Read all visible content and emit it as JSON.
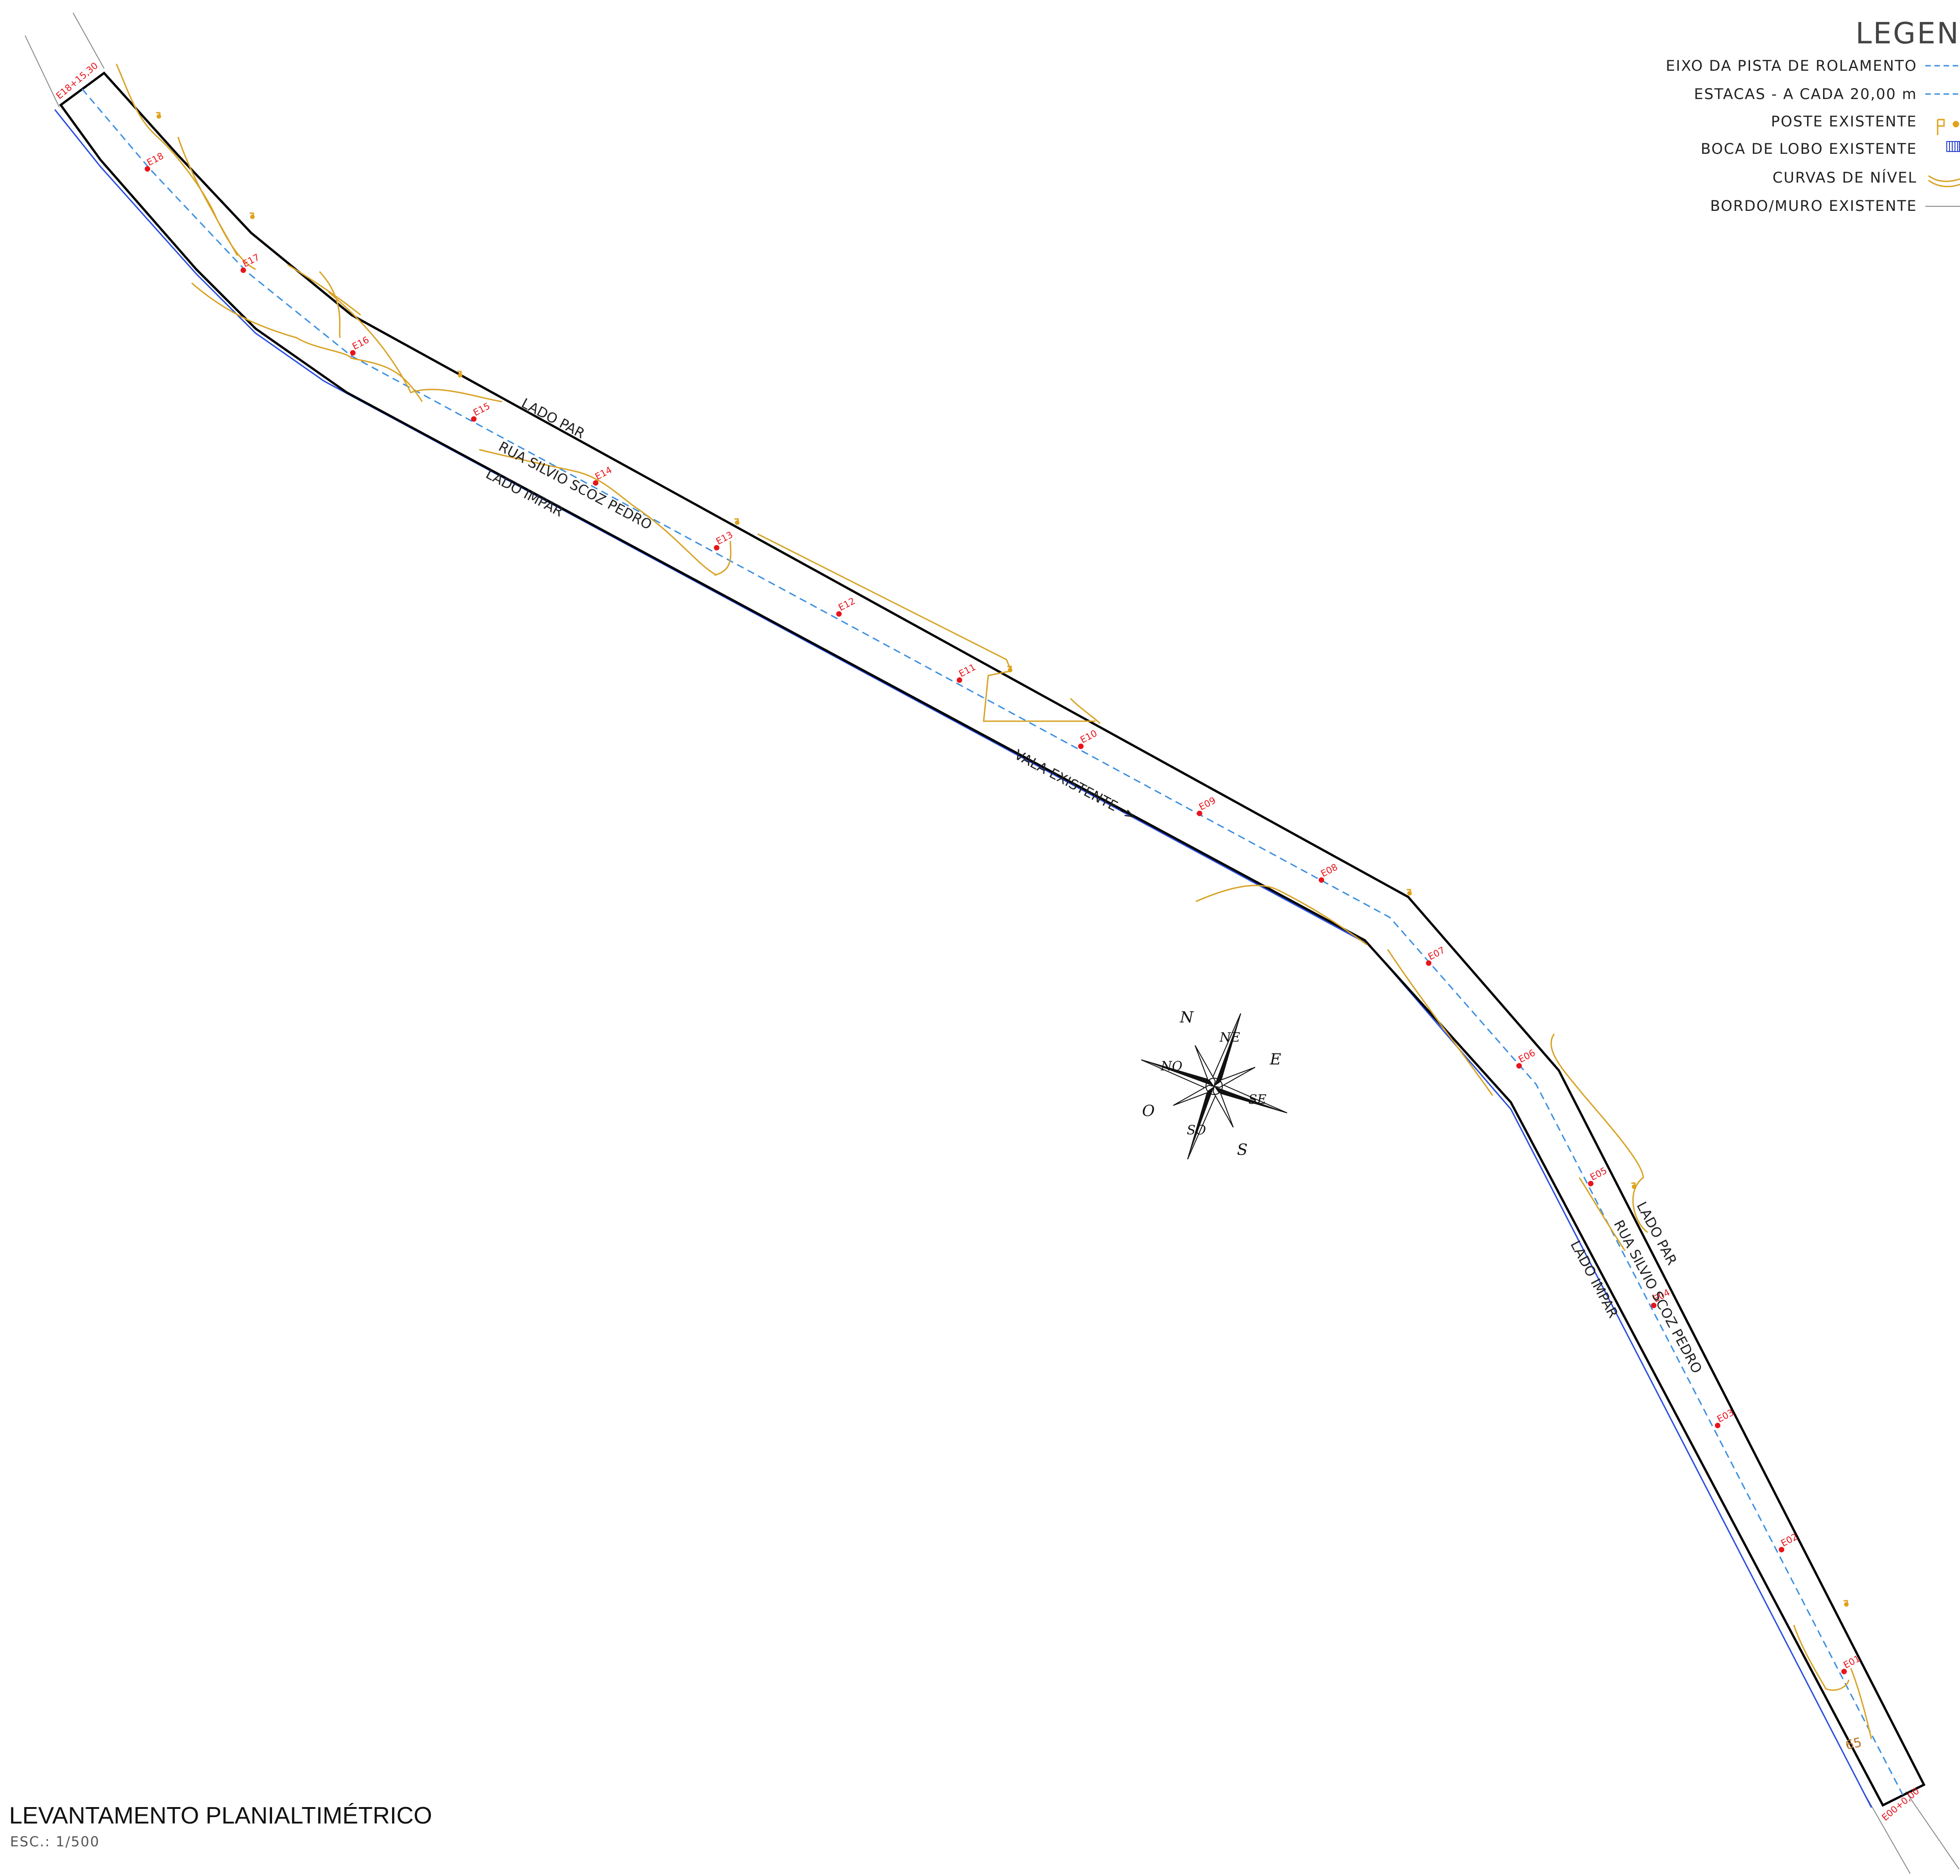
{
  "legend": {
    "title": "LEGEND",
    "items": [
      {
        "label": "EIXO DA PISTA DE ROLAMENTO",
        "symbol": "dashed-blue-line"
      },
      {
        "label": "ESTACAS - A CADA 20,00 m",
        "symbol": "dashed-blue-line-with-dot"
      },
      {
        "label": "POSTE EXISTENTE",
        "symbol": "pole-icon"
      },
      {
        "label": "BOCA DE LOBO EXISTENTE",
        "symbol": "storm-drain-icon"
      },
      {
        "label": "CURVAS DE NÍVEL",
        "symbol": "contour-icon"
      },
      {
        "label": "BORDO/MURO EXISTENTE",
        "symbol": "gray-line"
      }
    ]
  },
  "street": {
    "name": "RUA SILVIO SCOZ PEDRO",
    "side_even": "LADO PAR",
    "side_odd": "LADO IMPAR",
    "ditch": "VALA EXISTENTE ->",
    "start_station": "E00+0,00",
    "end_station": "E18+15,30",
    "contour_label": "65"
  },
  "stations": [
    "E01",
    "E02",
    "E03",
    "E04",
    "E05",
    "E06",
    "E07",
    "E08",
    "E09",
    "E10",
    "E11",
    "E12",
    "E13",
    "E14",
    "E15",
    "E16",
    "E17",
    "E18"
  ],
  "compass": {
    "N": "N",
    "NE": "NE",
    "E": "E",
    "SE": "SE",
    "S": "S",
    "SO": "SO",
    "O": "O",
    "NO": "NO"
  },
  "title_block": {
    "title": "LEVANTAMENTO PLANIALTIMÉTRICO",
    "scale": "ESC.: 1/500"
  },
  "colors": {
    "axis": "#3b8fe0",
    "edge_odd": "#2a4fe0",
    "road_outline": "#000000",
    "contour": "#d8a326",
    "station": "#e8141c",
    "existing_wall": "#8a8a8a"
  }
}
